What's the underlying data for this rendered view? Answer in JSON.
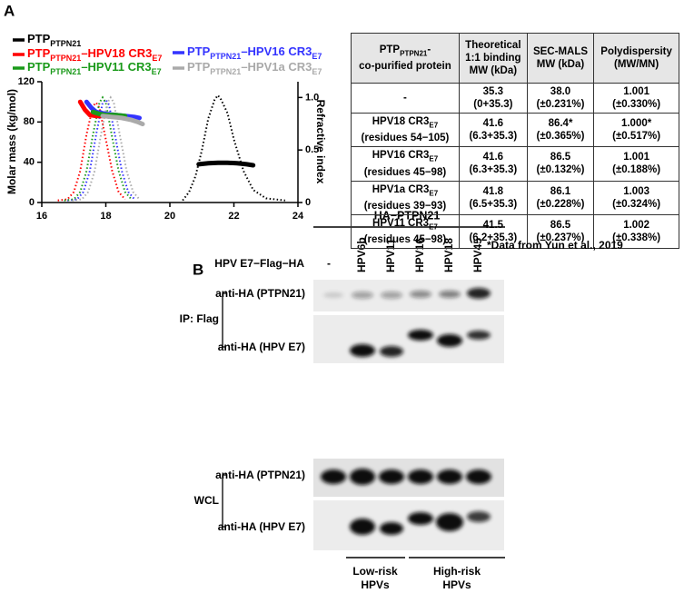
{
  "panel_labels": [
    "A",
    "B"
  ],
  "chart_data": {
    "type": "line",
    "ylabel": "Molar mass (kg/mol)",
    "y2label": "Refractive index",
    "xlim": [
      16,
      24
    ],
    "xticks": [
      16,
      18,
      20,
      22,
      24
    ],
    "ylim": [
      0,
      120
    ],
    "yticks": [
      0,
      40,
      80,
      120
    ],
    "y2lim": [
      0,
      1.15
    ],
    "y2ticks": [
      0,
      0.5,
      {
        "value": 1,
        "label": "1.0"
      }
    ],
    "series": [
      {
        "name": [
          "PTP",
          {
            "sub": "PTPN21"
          }
        ],
        "color": "#000000",
        "traces": [
          {
            "style": "solid",
            "x": [
              20.9,
              21.2,
              21.5,
              21.8,
              22.1,
              22.4,
              22.6
            ],
            "values": [
              38,
              39,
              39.5,
              39.5,
              39,
              38,
              37
            ]
          },
          {
            "style": "dotted",
            "axis": "y2",
            "x": [
              20.4,
              20.6,
              20.8,
              21.0,
              21.2,
              21.4,
              21.5,
              21.6,
              21.8,
              22.0,
              22.3,
              22.6,
              23.0,
              23.6
            ],
            "values": [
              0.02,
              0.1,
              0.25,
              0.5,
              0.8,
              0.98,
              1.02,
              0.98,
              0.85,
              0.6,
              0.3,
              0.12,
              0.04,
              0.02
            ]
          }
        ]
      },
      {
        "name": [
          "PTP",
          {
            "sub": "PTPN21"
          },
          "–HPV18 CR3",
          {
            "sub": "E7"
          }
        ],
        "color": "#ff0000",
        "traces": [
          {
            "style": "solid",
            "x": [
              17.2,
              17.35,
              17.5,
              17.7,
              17.9,
              18.1
            ],
            "values": [
              100,
              92,
              87,
              86,
              86,
              86
            ]
          },
          {
            "style": "dotted",
            "axis": "y2",
            "x": [
              16.5,
              16.8,
              17.0,
              17.2,
              17.4,
              17.6,
              17.7,
              17.8,
              18.0,
              18.2,
              18.4,
              18.6
            ],
            "values": [
              0.02,
              0.03,
              0.1,
              0.3,
              0.65,
              0.92,
              0.95,
              0.9,
              0.6,
              0.3,
              0.1,
              0.03
            ]
          }
        ]
      },
      {
        "name": [
          "PTP",
          {
            "sub": "PTPN21"
          },
          "–HPV16 CR3",
          {
            "sub": "E7"
          }
        ],
        "color": "#3333ff",
        "traces": [
          {
            "style": "solid",
            "x": [
              17.4,
              17.55,
              17.7,
              18.0,
              18.3,
              18.6,
              18.9,
              19.05
            ],
            "values": [
              100,
              94,
              90,
              88,
              87,
              86,
              85,
              84
            ]
          },
          {
            "style": "dotted",
            "axis": "y2",
            "x": [
              16.8,
              17.1,
              17.3,
              17.5,
              17.7,
              17.9,
              18.0,
              18.1,
              18.3,
              18.5,
              18.7,
              18.9
            ],
            "values": [
              0.02,
              0.03,
              0.1,
              0.3,
              0.65,
              0.95,
              0.98,
              0.93,
              0.62,
              0.3,
              0.1,
              0.03
            ]
          }
        ]
      },
      {
        "name": [
          "PTP",
          {
            "sub": "PTPN21"
          },
          "–HPV11 CR3",
          {
            "sub": "E7"
          }
        ],
        "color": "#1a9a1a",
        "traces": [
          {
            "style": "solid",
            "x": [
              17.6,
              17.8,
              18.0,
              18.3,
              18.6
            ],
            "values": [
              90,
              88,
              87,
              87,
              86
            ]
          },
          {
            "style": "dotted",
            "axis": "y2",
            "x": [
              16.7,
              17.0,
              17.2,
              17.4,
              17.6,
              17.8,
              17.9,
              18.0,
              18.2,
              18.4,
              18.6,
              18.8
            ],
            "values": [
              0.02,
              0.03,
              0.1,
              0.3,
              0.65,
              0.95,
              1.0,
              0.95,
              0.62,
              0.3,
              0.1,
              0.03
            ]
          }
        ]
      },
      {
        "name": [
          "PTP",
          {
            "sub": "PTPN21"
          },
          "–HPV1a CR3",
          {
            "sub": "E7"
          }
        ],
        "color": "#aaaaaa",
        "traces": [
          {
            "style": "solid",
            "x": [
              17.9,
              18.2,
              18.5,
              18.8,
              19.0,
              19.15
            ],
            "values": [
              86,
              85,
              84,
              82,
              80,
              78
            ]
          },
          {
            "style": "dotted",
            "axis": "y2",
            "x": [
              16.95,
              17.25,
              17.45,
              17.65,
              17.85,
              18.05,
              18.15,
              18.25,
              18.45,
              18.65,
              18.85,
              19.05
            ],
            "values": [
              0.02,
              0.03,
              0.1,
              0.3,
              0.65,
              0.95,
              1.0,
              0.95,
              0.62,
              0.3,
              0.1,
              0.03
            ]
          }
        ]
      }
    ]
  },
  "table": {
    "header": [
      [
        [
          "PTP",
          {
            "sub": "PTPN21"
          },
          "-"
        ],
        "co-purified protein"
      ],
      [
        "Theoretical",
        "1:1 binding",
        "MW (kDa)"
      ],
      [
        "SEC-MALS",
        "MW (kDa)"
      ],
      [
        "Polydispersity",
        "(MW/MN)"
      ]
    ],
    "rows": [
      [
        [
          "-"
        ],
        [
          "35.3",
          "(0+35.3)"
        ],
        [
          "38.0",
          "(±0.231%)"
        ],
        [
          "1.001",
          "(±0.330%)"
        ]
      ],
      [
        [
          [
            "HPV18 CR3",
            {
              "sub": "E7"
            }
          ],
          "(residues 54−105)"
        ],
        [
          "41.6",
          "(6.3+35.3)"
        ],
        [
          "86.4*",
          "(±0.365%)"
        ],
        [
          "1.000*",
          "(±0.517%)"
        ]
      ],
      [
        [
          [
            "HPV16 CR3",
            {
              "sub": "E7"
            }
          ],
          "(residues 45−98)"
        ],
        [
          "41.6",
          "(6.3+35.3)"
        ],
        [
          "86.5",
          "(±0.132%)"
        ],
        [
          "1.001",
          "(±0.188%)"
        ]
      ],
      [
        [
          [
            "HPV1a CR3",
            {
              "sub": "E7"
            }
          ],
          "(residues 39−93)"
        ],
        [
          "41.8",
          "(6.5+35.3)"
        ],
        [
          "86.1",
          "(±0.228%)"
        ],
        [
          "1.003",
          "(±0.324%)"
        ]
      ],
      [
        [
          [
            "HPV11 CR3",
            {
              "sub": "E7"
            }
          ],
          "(residues 45−98)"
        ],
        [
          "41.5",
          "(6.2+35.3)"
        ],
        [
          "86.5",
          "(±0.237%)"
        ],
        [
          "1.002",
          "(±0.338%)"
        ]
      ]
    ],
    "footnote": "*Data from Yun et al., 2019"
  },
  "blot": {
    "group": "HA−PTPN21",
    "construct": "HPV E7−Flag−HA",
    "lanes": [
      "-",
      "HPV6b",
      "HPV11",
      "HPV16",
      "HPV18",
      "HPV45"
    ],
    "rows": [
      "anti-HA (PTPN21)",
      "anti-HA (HPV E7)",
      "anti-HA (PTPN21)",
      "anti-HA (HPV E7)"
    ],
    "ip": "IP: Flag",
    "wcl": "WCL",
    "low": [
      "Low-risk",
      "HPVs"
    ],
    "high": [
      "High-risk",
      "HPVs"
    ]
  }
}
